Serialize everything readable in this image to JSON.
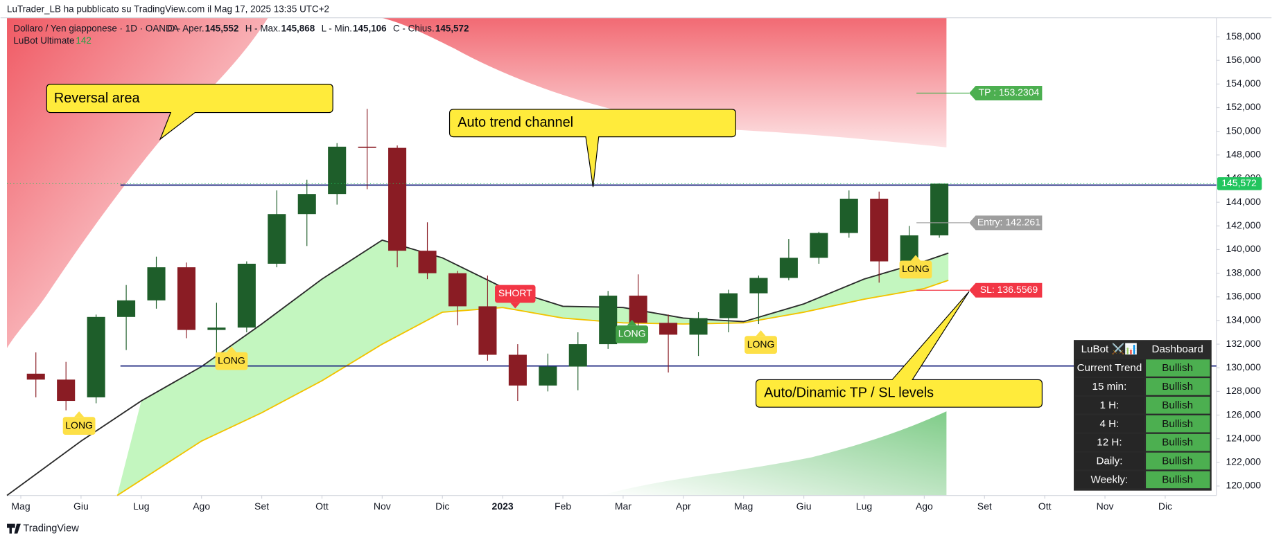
{
  "header": {
    "publisher": "LuTrader_LB ha pubblicato su TradingView.com il Mag 17, 2025 13:35 UTC+2",
    "symbol": "Dollaro / Yen giapponese · 1D · OANDA",
    "ohlc": [
      {
        "label": "O - Aper.",
        "value": "145,552"
      },
      {
        "label": "H - Max.",
        "value": "145,868"
      },
      {
        "label": "L - Min.",
        "value": "145,106"
      },
      {
        "label": "C - Chius.",
        "value": "145,572"
      }
    ],
    "indicator": "LuBot Ultimate",
    "indicator_value": "142"
  },
  "chart_data": {
    "type": "candlestick",
    "up_color": "#1e5e2a",
    "down_color": "#8a1c24",
    "x": [
      0.25,
      0.75,
      1.25,
      1.75,
      2.25,
      2.75,
      3.25,
      3.75,
      4.25,
      4.75,
      5.25,
      5.75,
      6.25,
      6.75,
      7.25,
      7.75,
      8.25,
      8.75,
      9.25,
      9.75,
      10.25,
      10.75,
      11.25,
      11.75,
      12.25,
      12.75,
      13.25,
      13.75,
      14.25,
      14.75,
      15.25
    ],
    "open": [
      129.5,
      129,
      127.5,
      134.3,
      135.7,
      138.5,
      133.2,
      133.4,
      138.8,
      143,
      144.7,
      148.7,
      148.6,
      139.9,
      138,
      135.2,
      131.1,
      128.5,
      130.1,
      132,
      136.1,
      133.8,
      132.8,
      134.2,
      136.3,
      137.6,
      139.3,
      141.4,
      144.3,
      139,
      141.2
    ],
    "high": [
      131.3,
      130.5,
      134.5,
      137,
      139.4,
      138.9,
      135.5,
      139,
      145,
      145.9,
      149,
      151.9,
      148.8,
      142.3,
      138.2,
      137.8,
      132,
      131.2,
      133,
      136.5,
      137.9,
      134.5,
      134.7,
      136.6,
      137.8,
      140.9,
      141.5,
      145,
      144.9,
      142,
      145.6
    ],
    "low": [
      127.5,
      126.4,
      127,
      131.5,
      135,
      132.5,
      130.4,
      133,
      138.5,
      140.3,
      143.8,
      145.1,
      138.5,
      137.5,
      133.6,
      130.6,
      127.2,
      128,
      128.1,
      131.6,
      132.3,
      129.6,
      131,
      133,
      133.7,
      137.4,
      138.8,
      141,
      137.2,
      138,
      141
    ],
    "close": [
      129,
      127.2,
      134.3,
      135.7,
      138.5,
      133.2,
      133.4,
      138.8,
      143,
      144.7,
      148.7,
      148.6,
      139.9,
      138,
      135.2,
      131.1,
      128.5,
      130.1,
      132,
      136.1,
      133.8,
      132.8,
      134.2,
      136.3,
      137.6,
      139.3,
      141.4,
      144.3,
      139,
      141.2,
      145.572
    ],
    "lines": [
      {
        "color": "#2b2b2b",
        "x": [
          -0.23,
          1,
          2,
          3,
          4,
          5,
          6,
          7,
          8,
          9,
          10,
          11,
          12,
          13,
          14,
          15,
          15.4
        ],
        "values": [
          119.2,
          123.8,
          127.2,
          130.1,
          133.7,
          137.5,
          140.8,
          139.3,
          136.8,
          135.2,
          135.1,
          134.2,
          133.9,
          135.4,
          137.5,
          139,
          139.7
        ]
      },
      {
        "color": "#f2c300",
        "x": [
          1.6,
          3,
          4,
          5,
          6,
          7,
          8,
          9,
          10,
          11,
          12,
          13,
          14,
          15,
          15.4
        ],
        "values": [
          119.2,
          123.8,
          126.2,
          128.9,
          132,
          134.7,
          135.1,
          134.2,
          133.8,
          133.7,
          133.8,
          134.7,
          135.8,
          136.7,
          137.4
        ]
      }
    ],
    "levels": [
      145.45,
      130.15
    ],
    "level_color": "#1a237e",
    "last_price": {
      "value": 145.572,
      "label": "145,572"
    },
    "last_color": "#22c55e",
    "targets": [
      {
        "label": "TP : 153.2304",
        "value": 153.2304,
        "color": "#4caf50"
      },
      {
        "label": "Entry: 142.261",
        "value": 142.261,
        "color": "#9e9e9e"
      },
      {
        "label": "SL: 136.5569",
        "value": 136.5569,
        "color": "#f23645"
      }
    ],
    "xlim": [
      -0.23,
      19.85
    ],
    "ylim": [
      119.2,
      159.6
    ],
    "xticks": [
      {
        "value": 0,
        "label": "Mag"
      },
      {
        "value": 1,
        "label": "Giu"
      },
      {
        "value": 2,
        "label": "Lug"
      },
      {
        "value": 3,
        "label": "Ago"
      },
      {
        "value": 4,
        "label": "Set"
      },
      {
        "value": 5,
        "label": "Ott"
      },
      {
        "value": 6,
        "label": "Nov"
      },
      {
        "value": 7,
        "label": "Dic"
      },
      {
        "value": 8,
        "label": "2023"
      },
      {
        "value": 9,
        "label": "Feb"
      },
      {
        "value": 10,
        "label": "Mar"
      },
      {
        "value": 11,
        "label": "Apr"
      },
      {
        "value": 12,
        "label": "Mag"
      },
      {
        "value": 13,
        "label": "Giu"
      },
      {
        "value": 14,
        "label": "Lug"
      },
      {
        "value": 15,
        "label": "Ago"
      },
      {
        "value": 16,
        "label": "Set"
      },
      {
        "value": 17,
        "label": "Ott"
      },
      {
        "value": 18,
        "label": "Nov"
      },
      {
        "value": 19,
        "label": "Dic"
      }
    ],
    "yticks": [
      {
        "value": 120,
        "label": "120,000"
      },
      {
        "value": 122,
        "label": "122,000"
      },
      {
        "value": 124,
        "label": "124,000"
      },
      {
        "value": 126,
        "label": "126,000"
      },
      {
        "value": 128,
        "label": "128,000"
      },
      {
        "value": 130,
        "label": "130,000"
      },
      {
        "value": 132,
        "label": "132,000"
      },
      {
        "value": 134,
        "label": "134,000"
      },
      {
        "value": 136,
        "label": "136,000"
      },
      {
        "value": 138,
        "label": "138,000"
      },
      {
        "value": 140,
        "label": "140,000"
      },
      {
        "value": 142,
        "label": "142,000"
      },
      {
        "value": 144,
        "label": "144,000"
      },
      {
        "value": 146,
        "label": "146,000"
      },
      {
        "value": 148,
        "label": "148,000"
      },
      {
        "value": 150,
        "label": "150,000"
      },
      {
        "value": 152,
        "label": "152,000"
      },
      {
        "value": 154,
        "label": "154,000"
      },
      {
        "value": 156,
        "label": "156,000"
      },
      {
        "value": 158,
        "label": "158,000"
      }
    ]
  },
  "callouts": [
    "Reversal area",
    "Auto trend channel",
    "Auto/Dinamic TP / SL levels"
  ],
  "signals": [
    "LONG",
    "LONG",
    "SHORT",
    "LONG",
    "LONG",
    "LONG"
  ],
  "dashboard": {
    "title": "LuBot ⚔️📊",
    "header": "Dashboard",
    "rows": [
      [
        "Current Trend",
        "Bullish"
      ],
      [
        "15 min:",
        "Bullish"
      ],
      [
        "1 H:",
        "Bullish"
      ],
      [
        "4 H:",
        "Bullish"
      ],
      [
        "12 H:",
        "Bullish"
      ],
      [
        "Daily:",
        "Bullish"
      ],
      [
        "Weekly:",
        "Bullish"
      ]
    ]
  },
  "footer": "TradingView"
}
